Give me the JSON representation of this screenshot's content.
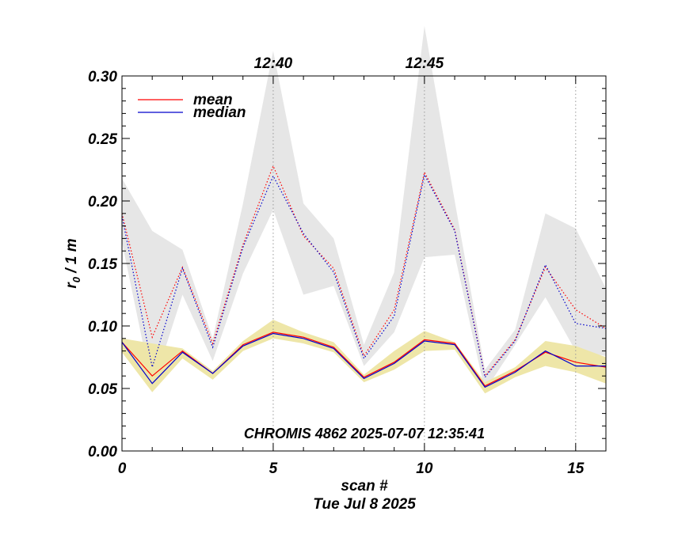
{
  "chart_data": {
    "type": "line",
    "xlabel": "scan #",
    "ylabel": "r",
    "ylabel_subscript": "0",
    "ylabel_suffix": " / 1 m",
    "footer": "Tue Jul  8 2025",
    "annotation": "CHROMIS 4862 2025-07-07 12:35:41",
    "xlim": [
      0,
      16
    ],
    "ylim": [
      0,
      0.3
    ],
    "x_ticks": [
      0,
      5,
      10,
      15
    ],
    "x_tick_labels": [
      "0",
      "5",
      "10",
      "15"
    ],
    "y_ticks": [
      0,
      0.05,
      0.1,
      0.15,
      0.2,
      0.25,
      0.3
    ],
    "y_tick_labels": [
      "0.00",
      "0.05",
      "0.10",
      "0.15",
      "0.20",
      "0.25",
      "0.30"
    ],
    "time_markers": [
      {
        "x": 5,
        "label": "12:40"
      },
      {
        "x": 10,
        "label": "12:45"
      },
      {
        "x": 15,
        "label": ""
      }
    ],
    "legend": [
      {
        "name": "mean",
        "color": "#ff0000"
      },
      {
        "name": "median",
        "color": "#0000cc"
      }
    ],
    "legend_position": "top-left",
    "x": [
      0,
      1,
      2,
      3,
      4,
      5,
      6,
      7,
      8,
      9,
      10,
      11,
      12,
      13,
      14,
      15,
      16
    ],
    "upper_band": {
      "color": "#e6e6e6",
      "min": [
        0.167,
        0.05,
        0.125,
        0.072,
        0.142,
        0.193,
        0.125,
        0.132,
        0.068,
        0.095,
        0.155,
        0.157,
        0.048,
        0.085,
        0.123,
        0.08,
        0.076
      ],
      "max": [
        0.218,
        0.176,
        0.161,
        0.09,
        0.198,
        0.32,
        0.198,
        0.17,
        0.085,
        0.143,
        0.34,
        0.2,
        0.065,
        0.097,
        0.19,
        0.178,
        0.13
      ]
    },
    "lower_band": {
      "color": "#eee6a8",
      "min": [
        0.079,
        0.047,
        0.074,
        0.057,
        0.08,
        0.09,
        0.086,
        0.079,
        0.055,
        0.065,
        0.08,
        0.081,
        0.046,
        0.059,
        0.068,
        0.063,
        0.054
      ],
      "max": [
        0.09,
        0.086,
        0.082,
        0.064,
        0.088,
        0.105,
        0.095,
        0.087,
        0.061,
        0.08,
        0.096,
        0.087,
        0.055,
        0.067,
        0.088,
        0.084,
        0.075
      ]
    },
    "series": [
      {
        "name": "mean",
        "group": "upper",
        "color": "#ff0000",
        "style": "dotted",
        "values": [
          0.19,
          0.091,
          0.147,
          0.086,
          0.165,
          0.228,
          0.172,
          0.146,
          0.076,
          0.113,
          0.223,
          0.177,
          0.06,
          0.089,
          0.147,
          0.113,
          0.098
        ]
      },
      {
        "name": "median",
        "group": "upper",
        "color": "#0000cc",
        "style": "dotted",
        "values": [
          0.188,
          0.067,
          0.146,
          0.083,
          0.163,
          0.22,
          0.174,
          0.143,
          0.074,
          0.108,
          0.221,
          0.176,
          0.059,
          0.088,
          0.149,
          0.102,
          0.098
        ]
      },
      {
        "name": "mean",
        "group": "lower",
        "color": "#ff0000",
        "style": "solid",
        "values": [
          0.087,
          0.06,
          0.08,
          0.062,
          0.085,
          0.095,
          0.091,
          0.083,
          0.059,
          0.071,
          0.089,
          0.086,
          0.052,
          0.064,
          0.079,
          0.071,
          0.067
        ]
      },
      {
        "name": "median",
        "group": "lower",
        "color": "#0000cc",
        "style": "solid",
        "values": [
          0.087,
          0.054,
          0.079,
          0.062,
          0.084,
          0.094,
          0.09,
          0.082,
          0.058,
          0.07,
          0.088,
          0.085,
          0.051,
          0.063,
          0.08,
          0.068,
          0.068
        ]
      }
    ]
  }
}
